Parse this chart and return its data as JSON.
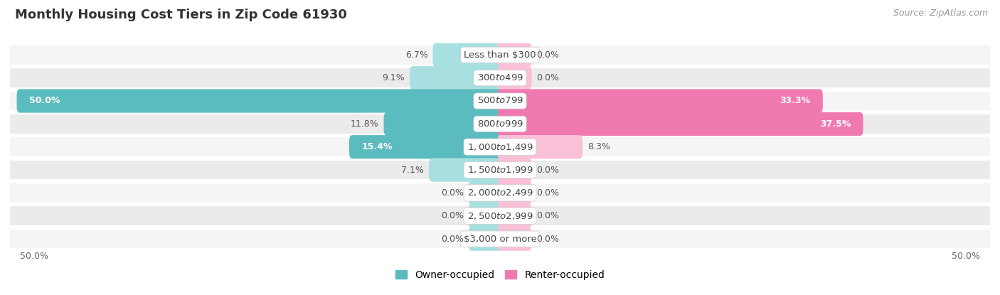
{
  "title": "Monthly Housing Cost Tiers in Zip Code 61930",
  "source": "Source: ZipAtlas.com",
  "categories": [
    "Less than $300",
    "$300 to $499",
    "$500 to $799",
    "$800 to $999",
    "$1,000 to $1,499",
    "$1,500 to $1,999",
    "$2,000 to $2,499",
    "$2,500 to $2,999",
    "$3,000 or more"
  ],
  "owner_values": [
    6.7,
    9.1,
    50.0,
    11.8,
    15.4,
    7.1,
    0.0,
    0.0,
    0.0
  ],
  "renter_values": [
    0.0,
    0.0,
    33.3,
    37.5,
    8.3,
    0.0,
    0.0,
    0.0,
    0.0
  ],
  "owner_color": "#5bbcbf",
  "renter_color": "#f07ab0",
  "renter_color_light": "#f9c0d8",
  "owner_color_light": "#a8dfe0",
  "max_value": 50.0,
  "min_stub": 3.0,
  "row_colors": [
    "#f5f5f5",
    "#ebebeb"
  ],
  "axis_label_left": "50.0%",
  "axis_label_right": "50.0%",
  "title_fontsize": 13,
  "source_fontsize": 9,
  "legend_fontsize": 10,
  "bar_label_fontsize": 9,
  "category_fontsize": 9.5
}
